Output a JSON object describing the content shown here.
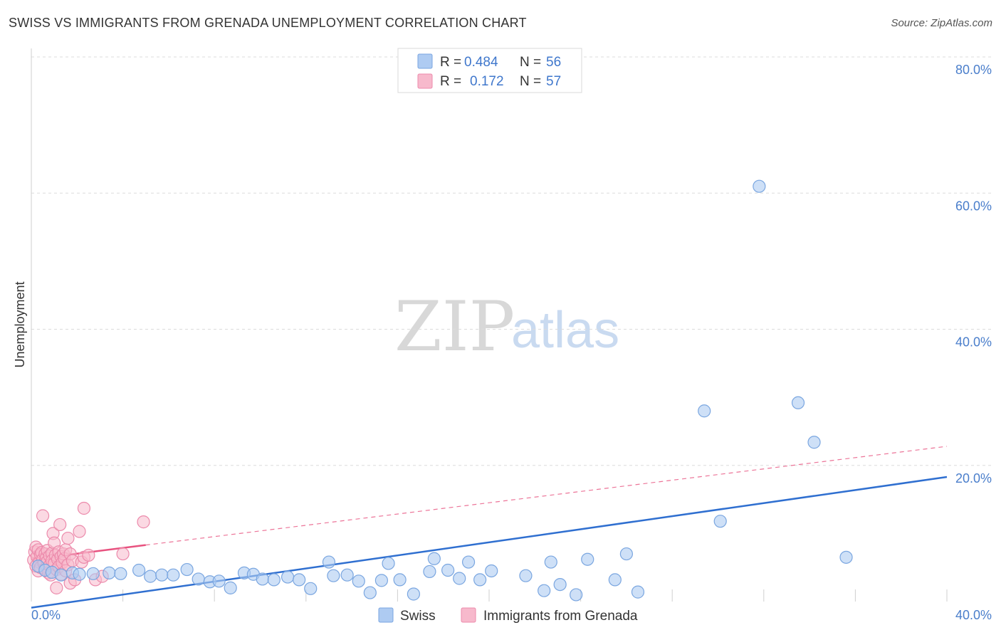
{
  "title": "SWISS VS IMMIGRANTS FROM GRENADA UNEMPLOYMENT CORRELATION CHART",
  "source": "Source: ZipAtlas.com",
  "watermark": {
    "zip": "ZIP",
    "atlas": "atlas"
  },
  "colors": {
    "swiss_fill": "#aecbf2",
    "swiss_stroke": "#7aa6e0",
    "swiss_line": "#2f6fd0",
    "grenada_fill": "#f7b9cc",
    "grenada_stroke": "#ec8aab",
    "grenada_line": "#e8527f",
    "grid": "#dcdcdc",
    "tick_text": "#4a7ecb"
  },
  "legend": {
    "rows": [
      {
        "r_label": "R =",
        "r_value": "0.484",
        "n_label": "N =",
        "n_value": "56"
      },
      {
        "r_label": "R =",
        "r_value": "0.172",
        "n_label": "N =",
        "n_value": "57"
      }
    ]
  },
  "chart_data": {
    "type": "scatter",
    "title": "SWISS VS IMMIGRANTS FROM GRENADA UNEMPLOYMENT CORRELATION CHART",
    "xlabel": "",
    "ylabel": "Unemployment",
    "xlim": [
      0,
      40
    ],
    "ylim": [
      0,
      80
    ],
    "x_tick_labels": [
      "0.0%",
      "40.0%"
    ],
    "y_ticks": [
      20,
      40,
      60,
      80
    ],
    "y_tick_labels": [
      "20.0%",
      "40.0%",
      "60.0%",
      "80.0%"
    ],
    "grid": true,
    "legend_position": "top-center",
    "series": [
      {
        "name": "Swiss",
        "r": 0.484,
        "n": 56,
        "trend": {
          "x": [
            0,
            40
          ],
          "y": [
            -0.9,
            18.3
          ],
          "style": "solid"
        },
        "points": [
          [
            0.3,
            5.2
          ],
          [
            0.6,
            4.6
          ],
          [
            0.9,
            4.3
          ],
          [
            1.3,
            3.9
          ],
          [
            1.8,
            4.2
          ],
          [
            2.1,
            4.0
          ],
          [
            2.7,
            4.1
          ],
          [
            3.4,
            4.2
          ],
          [
            3.9,
            4.1
          ],
          [
            4.7,
            4.6
          ],
          [
            5.2,
            3.7
          ],
          [
            5.7,
            3.9
          ],
          [
            6.2,
            3.9
          ],
          [
            6.8,
            4.7
          ],
          [
            7.3,
            3.3
          ],
          [
            7.8,
            2.9
          ],
          [
            8.2,
            3.0
          ],
          [
            8.7,
            2.0
          ],
          [
            9.3,
            4.2
          ],
          [
            9.7,
            4.0
          ],
          [
            10.1,
            3.3
          ],
          [
            10.6,
            3.2
          ],
          [
            11.2,
            3.6
          ],
          [
            11.7,
            3.2
          ],
          [
            12.2,
            1.9
          ],
          [
            13.0,
            5.8
          ],
          [
            13.2,
            3.8
          ],
          [
            13.8,
            3.9
          ],
          [
            14.3,
            3.0
          ],
          [
            14.8,
            1.3
          ],
          [
            15.3,
            3.1
          ],
          [
            15.6,
            5.6
          ],
          [
            16.1,
            3.2
          ],
          [
            16.7,
            1.1
          ],
          [
            17.4,
            4.4
          ],
          [
            17.6,
            6.3
          ],
          [
            18.2,
            4.6
          ],
          [
            18.7,
            3.4
          ],
          [
            19.1,
            5.8
          ],
          [
            19.6,
            3.2
          ],
          [
            20.1,
            4.5
          ],
          [
            21.6,
            3.8
          ],
          [
            22.4,
            1.6
          ],
          [
            22.7,
            5.8
          ],
          [
            23.1,
            2.5
          ],
          [
            23.8,
            1.0
          ],
          [
            24.3,
            6.2
          ],
          [
            25.5,
            3.2
          ],
          [
            26.0,
            7.0
          ],
          [
            26.5,
            1.4
          ],
          [
            29.4,
            28.0
          ],
          [
            30.1,
            11.8
          ],
          [
            31.8,
            61.0
          ],
          [
            33.5,
            29.2
          ],
          [
            34.2,
            23.4
          ],
          [
            35.6,
            6.5
          ]
        ]
      },
      {
        "name": "Immigrants from Grenada",
        "r": 0.172,
        "n": 57,
        "trend": {
          "x": [
            0,
            5
          ],
          "y": [
            6.2,
            8.3
          ],
          "style": "solid",
          "extended_x": [
            5,
            40
          ],
          "extended_y": [
            8.3,
            22.8
          ],
          "extended_style": "dashed"
        },
        "points": [
          [
            0.1,
            6.1
          ],
          [
            0.15,
            7.3
          ],
          [
            0.2,
            5.2
          ],
          [
            0.2,
            8.0
          ],
          [
            0.25,
            6.6
          ],
          [
            0.3,
            4.5
          ],
          [
            0.3,
            7.6
          ],
          [
            0.35,
            5.8
          ],
          [
            0.4,
            6.9
          ],
          [
            0.4,
            5.0
          ],
          [
            0.45,
            7.2
          ],
          [
            0.5,
            6.2
          ],
          [
            0.5,
            12.6
          ],
          [
            0.55,
            5.6
          ],
          [
            0.6,
            7.0
          ],
          [
            0.6,
            4.8
          ],
          [
            0.65,
            6.4
          ],
          [
            0.7,
            5.9
          ],
          [
            0.7,
            7.5
          ],
          [
            0.75,
            4.2
          ],
          [
            0.8,
            6.7
          ],
          [
            0.8,
            5.3
          ],
          [
            0.85,
            3.9
          ],
          [
            0.9,
            7.1
          ],
          [
            0.9,
            6.0
          ],
          [
            0.95,
            10.0
          ],
          [
            1.0,
            5.6
          ],
          [
            1.0,
            8.6
          ],
          [
            1.05,
            6.8
          ],
          [
            1.1,
            4.7
          ],
          [
            1.1,
            2.0
          ],
          [
            1.15,
            6.2
          ],
          [
            1.2,
            7.3
          ],
          [
            1.2,
            5.1
          ],
          [
            1.25,
            11.3
          ],
          [
            1.3,
            6.6
          ],
          [
            1.3,
            4.0
          ],
          [
            1.35,
            5.7
          ],
          [
            1.4,
            7.0
          ],
          [
            1.45,
            6.3
          ],
          [
            1.5,
            4.5
          ],
          [
            1.5,
            7.6
          ],
          [
            1.6,
            5.4
          ],
          [
            1.6,
            9.3
          ],
          [
            1.7,
            7.0
          ],
          [
            1.7,
            2.7
          ],
          [
            1.8,
            6.0
          ],
          [
            2.1,
            10.3
          ],
          [
            2.2,
            5.8
          ],
          [
            2.3,
            6.5
          ],
          [
            2.3,
            13.7
          ],
          [
            2.5,
            6.8
          ],
          [
            2.8,
            3.2
          ],
          [
            3.1,
            3.7
          ],
          [
            4.0,
            7.0
          ],
          [
            4.9,
            11.7
          ],
          [
            1.9,
            3.2
          ]
        ]
      }
    ]
  },
  "bottom_legend": {
    "swiss": "Swiss",
    "grenada": "Immigrants from Grenada"
  }
}
